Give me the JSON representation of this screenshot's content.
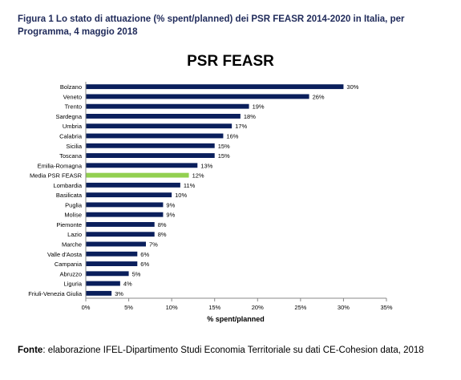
{
  "caption": "Figura 1 Lo stato di attuazione (% spent/planned) dei PSR FEASR 2014-2020 in Italia, per Programma, 4 maggio 2018",
  "source": {
    "label": "Fonte",
    "text": ": elaborazione IFEL-Dipartimento Studi Economia Territoriale su dati CE-Cohesion data, 2018"
  },
  "colors": {
    "bar": "#0a1f5c",
    "highlight": "#92d050",
    "axis": "#888888"
  },
  "chart_data": {
    "type": "bar",
    "orientation": "horizontal",
    "title": "PSR FEASR",
    "xlabel": "% spent/planned",
    "ylabel": "",
    "xlim": [
      0,
      35
    ],
    "xticks": [
      "0%",
      "5%",
      "10%",
      "15%",
      "20%",
      "25%",
      "30%",
      "35%"
    ],
    "grid": false,
    "categories": [
      "Bolzano",
      "Veneto",
      "Trento",
      "Sardegna",
      "Umbria",
      "Calabria",
      "Sicilia",
      "Toscana",
      "Emilia-Romagna",
      "Media PSR FEASR",
      "Lombardia",
      "Basilicata",
      "Puglia",
      "Molise",
      "Piemonte",
      "Lazio",
      "Marche",
      "Valle d'Aosta",
      "Campania",
      "Abruzzo",
      "Liguria",
      "Friuli-Venezia Giulia"
    ],
    "values": [
      30,
      26,
      19,
      18,
      17,
      16,
      15,
      15,
      13,
      12,
      11,
      10,
      9,
      9,
      8,
      8,
      7,
      6,
      6,
      5,
      4,
      3
    ],
    "labels": [
      "30%",
      "26%",
      "19%",
      "18%",
      "17%",
      "16%",
      "15%",
      "15%",
      "13%",
      "12%",
      "11%",
      "10%",
      "9%",
      "9%",
      "8%",
      "8%",
      "7%",
      "6%",
      "6%",
      "5%",
      "4%",
      "3%"
    ],
    "highlight": "Media PSR FEASR"
  }
}
